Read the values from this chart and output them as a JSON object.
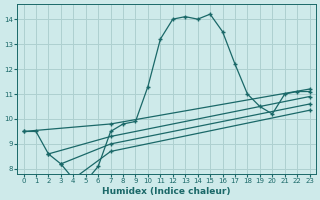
{
  "xlabel": "Humidex (Indice chaleur)",
  "bg_color": "#ceeaea",
  "grid_color": "#aed0d0",
  "line_color": "#1a6868",
  "xlim": [
    -0.5,
    23.5
  ],
  "ylim": [
    7.8,
    14.6
  ],
  "yticks": [
    8,
    9,
    10,
    11,
    12,
    13,
    14
  ],
  "xticks": [
    0,
    1,
    2,
    3,
    4,
    5,
    6,
    7,
    8,
    9,
    10,
    11,
    12,
    13,
    14,
    15,
    16,
    17,
    18,
    19,
    20,
    21,
    22,
    23
  ],
  "lines": [
    {
      "x": [
        0,
        1,
        2,
        3,
        4,
        5,
        6,
        7,
        8,
        9,
        10,
        11,
        12,
        13,
        14,
        15,
        16,
        17,
        18,
        19,
        20,
        21,
        22,
        23
      ],
      "y": [
        9.5,
        9.5,
        8.6,
        8.2,
        7.6,
        7.5,
        8.1,
        9.5,
        9.8,
        9.9,
        11.3,
        13.2,
        14.0,
        14.1,
        14.0,
        14.2,
        13.5,
        12.2,
        11.0,
        10.5,
        10.2,
        11.0,
        11.1,
        11.1
      ]
    },
    {
      "x": [
        0,
        7,
        23
      ],
      "y": [
        9.5,
        9.8,
        11.2
      ]
    },
    {
      "x": [
        2,
        7,
        23
      ],
      "y": [
        8.6,
        9.3,
        10.9
      ]
    },
    {
      "x": [
        3,
        7,
        23
      ],
      "y": [
        8.2,
        9.0,
        10.6
      ]
    },
    {
      "x": [
        4,
        7,
        23
      ],
      "y": [
        7.6,
        8.7,
        10.35
      ]
    }
  ]
}
